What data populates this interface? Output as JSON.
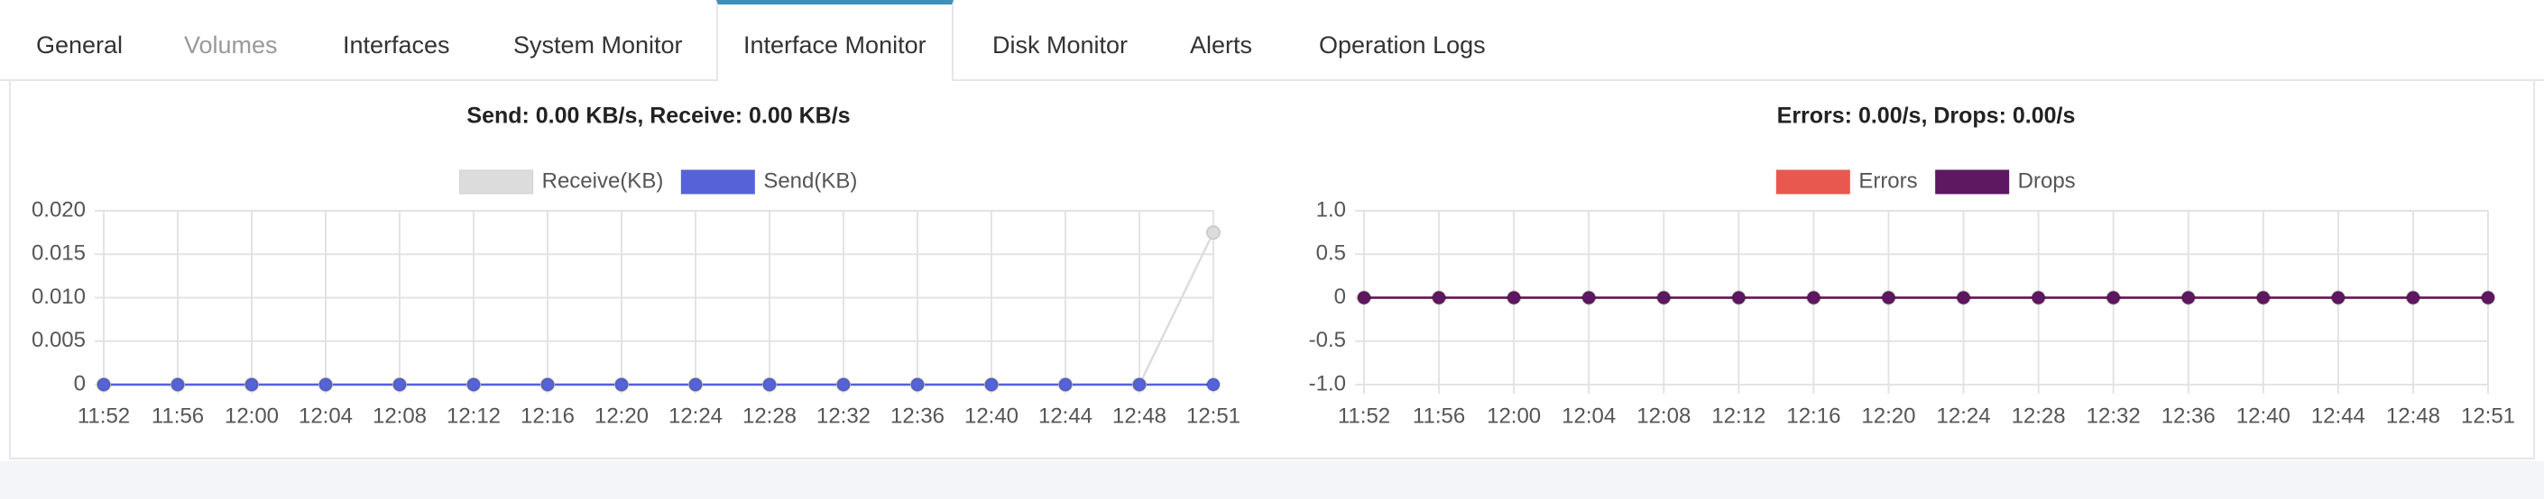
{
  "tabs": [
    "General",
    "Volumes",
    "Interfaces",
    "System Monitor",
    "Interface Monitor",
    "Disk Monitor",
    "Alerts",
    "Operation Logs"
  ],
  "chart_data": [
    {
      "type": "line",
      "title": "Send: 0.00 KB/s, Receive: 0.00 KB/s",
      "categories": [
        "11:52",
        "11:56",
        "12:00",
        "12:04",
        "12:08",
        "12:12",
        "12:16",
        "12:20",
        "12:24",
        "12:28",
        "12:32",
        "12:36",
        "12:40",
        "12:44",
        "12:48",
        "12:51"
      ],
      "series": [
        {
          "name": "Receive(KB)",
          "color": "#dcdcdc",
          "values": [
            0,
            0,
            0,
            0,
            0,
            0,
            0,
            0,
            0,
            0,
            0,
            0,
            0,
            0,
            0,
            0.0175
          ]
        },
        {
          "name": "Send(KB)",
          "color": "#5562d8",
          "values": [
            0,
            0,
            0,
            0,
            0,
            0,
            0,
            0,
            0,
            0,
            0,
            0,
            0,
            0,
            0,
            0
          ]
        }
      ],
      "ylim": [
        0,
        0.02
      ],
      "yticks": [
        0,
        0.005,
        {
          "value": 0.01,
          "label": "0.010"
        },
        0.015,
        {
          "value": 0.02,
          "label": "0.020"
        }
      ],
      "grid": true,
      "legend": "top"
    },
    {
      "type": "line",
      "title": "Errors: 0.00/s, Drops: 0.00/s",
      "categories": [
        "11:52",
        "11:56",
        "12:00",
        "12:04",
        "12:08",
        "12:12",
        "12:16",
        "12:20",
        "12:24",
        "12:28",
        "12:32",
        "12:36",
        "12:40",
        "12:44",
        "12:48",
        "12:51"
      ],
      "series": [
        {
          "name": "Errors",
          "color": "#e8584f",
          "values": [
            0,
            0,
            0,
            0,
            0,
            0,
            0,
            0,
            0,
            0,
            0,
            0,
            0,
            0,
            0,
            0
          ]
        },
        {
          "name": "Drops",
          "color": "#5e1761",
          "values": [
            0,
            0,
            0,
            0,
            0,
            0,
            0,
            0,
            0,
            0,
            0,
            0,
            0,
            0,
            0,
            0
          ]
        }
      ],
      "ylim": [
        -1,
        1
      ],
      "yticks": [
        {
          "value": -1,
          "label": "-1.0"
        },
        -0.5,
        0,
        0.5,
        {
          "value": 1,
          "label": "1.0"
        }
      ],
      "grid": true,
      "legend": "top"
    }
  ]
}
